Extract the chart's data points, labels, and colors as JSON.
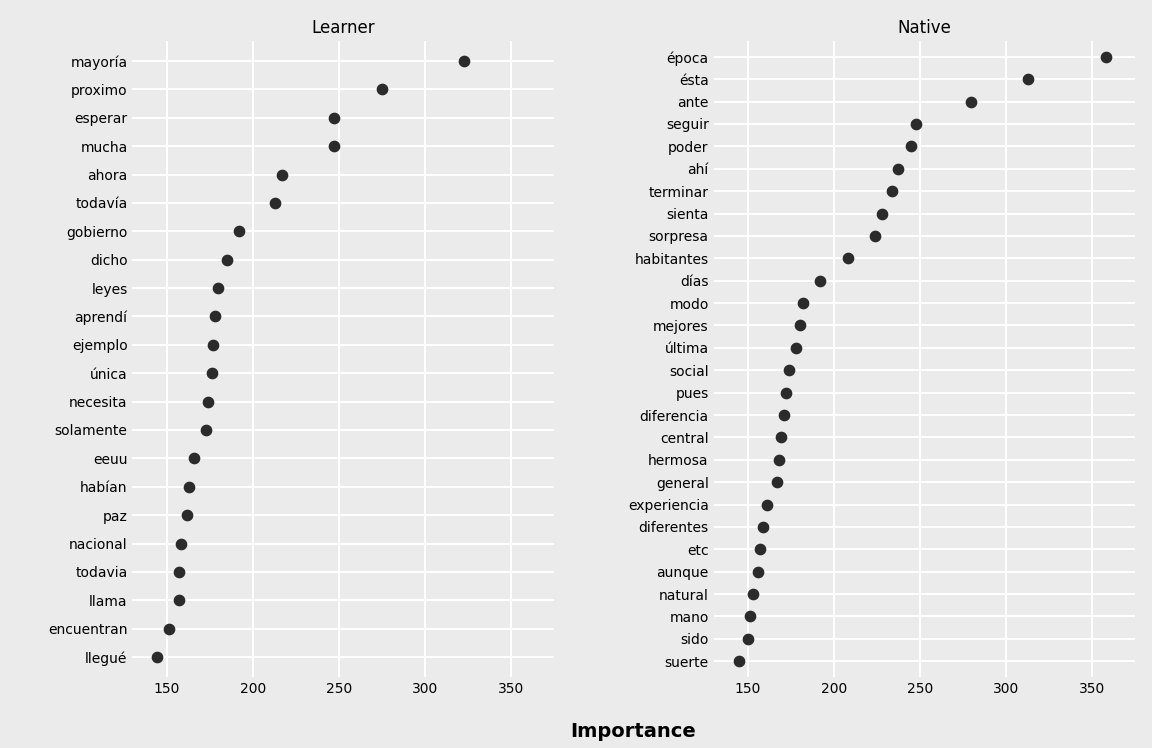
{
  "learner": {
    "features": [
      "mayoría",
      "proximo",
      "esperar",
      "mucha",
      "ahora",
      "todavía",
      "gobierno",
      "dicho",
      "leyes",
      "aprendí",
      "ejemplo",
      "única",
      "necesita",
      "solamente",
      "eeuu",
      "habían",
      "paz",
      "nacional",
      "todavia",
      "llama",
      "encuentran",
      "llegué"
    ],
    "values": [
      323,
      275,
      247,
      247,
      217,
      213,
      192,
      185,
      180,
      178,
      177,
      176,
      174,
      173,
      166,
      163,
      162,
      158,
      157,
      157,
      151,
      144
    ]
  },
  "native": {
    "features": [
      "época",
      "ésta",
      "ante",
      "seguir",
      "poder",
      "ahí",
      "terminar",
      "sienta",
      "sorpresa",
      "habitantes",
      "días",
      "modo",
      "mejores",
      "última",
      "social",
      "pues",
      "diferencia",
      "central",
      "hermosa",
      "general",
      "experiencia",
      "diferentes",
      "etc",
      "aunque",
      "natural",
      "mano",
      "sido",
      "suerte"
    ],
    "values": [
      358,
      313,
      280,
      248,
      245,
      237,
      234,
      228,
      224,
      208,
      192,
      182,
      180,
      178,
      174,
      172,
      171,
      169,
      168,
      167,
      161,
      159,
      157,
      156,
      153,
      151,
      150,
      145
    ]
  },
  "title_learner": "Learner",
  "title_native": "Native",
  "xlabel": "Importance",
  "xlim": [
    130,
    375
  ],
  "xticks": [
    150,
    200,
    250,
    300,
    350
  ],
  "dot_color": "#2b2b2b",
  "dot_size": 55,
  "background_color": "#ebebeb",
  "grid_color": "#ffffff",
  "title_fontsize": 12,
  "label_fontsize": 10,
  "tick_fontsize": 10
}
